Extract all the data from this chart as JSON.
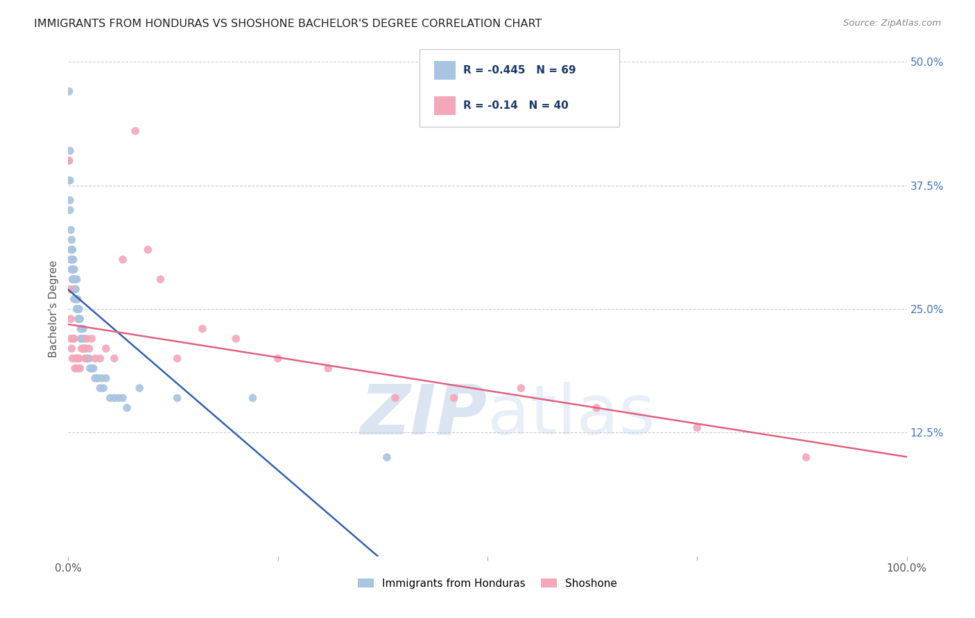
{
  "title": "IMMIGRANTS FROM HONDURAS VS SHOSHONE BACHELOR'S DEGREE CORRELATION CHART",
  "source": "Source: ZipAtlas.com",
  "ylabel": "Bachelor's Degree",
  "xlim": [
    0.0,
    1.0
  ],
  "ylim": [
    0.0,
    0.5
  ],
  "xtick_pos": [
    0.0,
    0.25,
    0.5,
    0.75,
    1.0
  ],
  "xtick_labels": [
    "0.0%",
    "",
    "",
    "",
    "100.0%"
  ],
  "ytick_pos": [
    0.0,
    0.125,
    0.25,
    0.375,
    0.5
  ],
  "ytick_labels": [
    "",
    "12.5%",
    "25.0%",
    "37.5%",
    "50.0%"
  ],
  "blue_R": -0.445,
  "blue_N": 69,
  "pink_R": -0.14,
  "pink_N": 40,
  "blue_color": "#a8c4e0",
  "pink_color": "#f4a7b9",
  "blue_line_color": "#3060b0",
  "pink_line_color": "#e06080",
  "blue_points_x": [
    0.001,
    0.001,
    0.001,
    0.002,
    0.002,
    0.002,
    0.002,
    0.003,
    0.003,
    0.003,
    0.004,
    0.004,
    0.004,
    0.005,
    0.005,
    0.005,
    0.005,
    0.006,
    0.006,
    0.006,
    0.007,
    0.007,
    0.007,
    0.007,
    0.008,
    0.008,
    0.008,
    0.009,
    0.009,
    0.01,
    0.01,
    0.01,
    0.011,
    0.011,
    0.012,
    0.012,
    0.013,
    0.013,
    0.014,
    0.015,
    0.015,
    0.016,
    0.017,
    0.018,
    0.018,
    0.019,
    0.02,
    0.021,
    0.022,
    0.023,
    0.025,
    0.026,
    0.028,
    0.03,
    0.032,
    0.035,
    0.038,
    0.04,
    0.042,
    0.045,
    0.05,
    0.055,
    0.06,
    0.065,
    0.07,
    0.085,
    0.13,
    0.22,
    0.38
  ],
  "blue_points_y": [
    0.47,
    0.4,
    0.38,
    0.41,
    0.38,
    0.36,
    0.35,
    0.33,
    0.31,
    0.3,
    0.32,
    0.3,
    0.29,
    0.31,
    0.3,
    0.29,
    0.28,
    0.3,
    0.29,
    0.28,
    0.29,
    0.28,
    0.27,
    0.26,
    0.28,
    0.27,
    0.26,
    0.27,
    0.26,
    0.28,
    0.26,
    0.25,
    0.26,
    0.25,
    0.25,
    0.24,
    0.25,
    0.24,
    0.24,
    0.23,
    0.22,
    0.23,
    0.22,
    0.23,
    0.21,
    0.22,
    0.21,
    0.21,
    0.2,
    0.2,
    0.2,
    0.19,
    0.19,
    0.19,
    0.18,
    0.18,
    0.17,
    0.18,
    0.17,
    0.18,
    0.16,
    0.16,
    0.16,
    0.16,
    0.15,
    0.17,
    0.16,
    0.16,
    0.1
  ],
  "pink_points_x": [
    0.001,
    0.002,
    0.003,
    0.003,
    0.004,
    0.005,
    0.006,
    0.007,
    0.008,
    0.009,
    0.01,
    0.011,
    0.012,
    0.013,
    0.014,
    0.016,
    0.018,
    0.02,
    0.022,
    0.025,
    0.028,
    0.032,
    0.038,
    0.045,
    0.055,
    0.065,
    0.08,
    0.095,
    0.11,
    0.13,
    0.16,
    0.2,
    0.25,
    0.31,
    0.39,
    0.46,
    0.54,
    0.63,
    0.75,
    0.88
  ],
  "pink_points_y": [
    0.4,
    0.27,
    0.24,
    0.22,
    0.21,
    0.2,
    0.22,
    0.22,
    0.19,
    0.2,
    0.19,
    0.2,
    0.19,
    0.2,
    0.19,
    0.21,
    0.21,
    0.2,
    0.22,
    0.21,
    0.22,
    0.2,
    0.2,
    0.21,
    0.2,
    0.3,
    0.43,
    0.31,
    0.28,
    0.2,
    0.23,
    0.22,
    0.2,
    0.19,
    0.16,
    0.16,
    0.17,
    0.15,
    0.13,
    0.1
  ],
  "watermark_zip": "ZIP",
  "watermark_atlas": "atlas",
  "legend_label_blue": "Immigrants from Honduras",
  "legend_label_pink": "Shoshone",
  "marker_size": 70,
  "blue_line_x0": 0.0,
  "blue_line_x1": 1.0,
  "pink_line_x0": 0.0,
  "pink_line_x1": 1.0
}
